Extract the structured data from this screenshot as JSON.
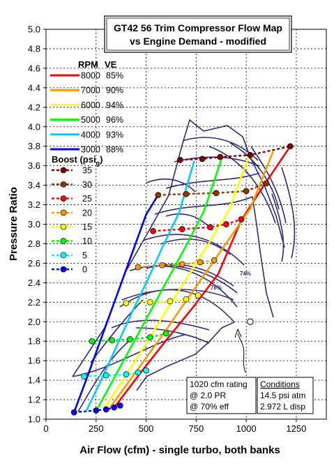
{
  "chart_data": {
    "type": "line",
    "title_lines": [
      "GT42 56 Trim Compressor Flow Map",
      "vs Engine Demand - modified"
    ],
    "xlabel": "Air Flow (cfm) - single turbo, both banks",
    "ylabel": "Pressure Ratio",
    "xlim": [
      0,
      1400
    ],
    "ylim": [
      1.0,
      5.0
    ],
    "x_ticks": [
      "0",
      "250",
      "500",
      "750",
      "1000",
      "1250"
    ],
    "y_ticks": [
      "1.0",
      "1.2",
      "1.4",
      "1.6",
      "1.8",
      "2.0",
      "2.2",
      "2.4",
      "2.6",
      "2.8",
      "3.0",
      "3.2",
      "3.4",
      "3.6",
      "3.8",
      "4.0",
      "4.2",
      "4.4",
      "4.6",
      "4.8",
      "5.0"
    ],
    "grid": "dashed vertical and horizontal",
    "boost_levels": [
      "0",
      "5",
      "10",
      "15",
      "20",
      "25",
      "30",
      "35"
    ],
    "rpm_series": [
      {
        "name": "8000",
        "ve": "85%",
        "color": "#ff0000",
        "x": [
          345,
          470,
          600,
          735,
          860,
          975,
          1095,
          1220
        ],
        "y": [
          1.13,
          1.47,
          1.81,
          2.15,
          2.49,
          3.04,
          3.42,
          3.8
        ]
      },
      {
        "name": "7000",
        "ve": "90%",
        "color": "#ff9900",
        "x": [
          320,
          440,
          560,
          675,
          790,
          905,
          1020,
          1135
        ],
        "y": [
          1.12,
          1.46,
          1.8,
          2.14,
          2.48,
          2.82,
          3.16,
          3.75
        ]
      },
      {
        "name": "6000",
        "ve": "94%",
        "color": "#ffff00",
        "x": [
          290,
          400,
          505,
          605,
          710,
          815,
          915,
          1015
        ],
        "y": [
          1.11,
          1.45,
          1.79,
          2.13,
          2.47,
          2.81,
          3.15,
          3.71
        ]
      },
      {
        "name": "5000",
        "ve": "96%",
        "color": "#00ff00",
        "x": [
          255,
          345,
          435,
          525,
          615,
          705,
          790,
          875
        ],
        "y": [
          1.1,
          1.44,
          1.78,
          2.12,
          2.46,
          2.8,
          3.14,
          3.66
        ]
      },
      {
        "name": "4000",
        "ve": "93%",
        "color": "#00ccff",
        "x": [
          200,
          280,
          355,
          430,
          510,
          585,
          665,
          740
        ],
        "y": [
          1.08,
          1.42,
          1.76,
          2.1,
          2.44,
          2.78,
          3.12,
          3.65
        ]
      },
      {
        "name": "3000",
        "ve": "88%",
        "color": "#0000ff",
        "x": [
          140,
          200,
          260,
          320,
          380,
          440,
          500,
          560
        ],
        "y": [
          1.07,
          1.4,
          1.74,
          2.08,
          2.42,
          2.76,
          3.1,
          3.3
        ]
      }
    ],
    "boost_series": [
      {
        "name": "35",
        "color": "#800000",
        "x": [
          670,
          780,
          870,
          1020,
          1220
        ],
        "y": [
          3.66,
          3.67,
          3.69,
          3.71,
          3.8
        ]
      },
      {
        "name": "30",
        "color": "#993300",
        "x": [
          560,
          700,
          850,
          1000,
          1100
        ],
        "y": [
          3.3,
          3.31,
          3.32,
          3.34,
          3.42
        ]
      },
      {
        "name": "25",
        "color": "#ff0000",
        "x": [
          535,
          680,
          820,
          900,
          975
        ],
        "y": [
          2.93,
          2.95,
          2.97,
          3.0,
          3.05
        ]
      },
      {
        "name": "20",
        "color": "#ff9900",
        "x": [
          460,
          580,
          680,
          770,
          840
        ],
        "y": [
          2.56,
          2.58,
          2.59,
          2.61,
          2.63
        ]
      },
      {
        "name": "15",
        "color": "#ffff00",
        "x": [
          400,
          520,
          620,
          700,
          760
        ],
        "y": [
          2.19,
          2.2,
          2.21,
          2.23,
          2.27
        ]
      },
      {
        "name": "10",
        "color": "#00ff00",
        "x": [
          230,
          330,
          420,
          520,
          600
        ],
        "y": [
          1.8,
          1.81,
          1.82,
          1.84,
          1.88
        ]
      },
      {
        "name": "5",
        "color": "#00ffff",
        "x": [
          190,
          300,
          400,
          460,
          500
        ],
        "y": [
          1.44,
          1.45,
          1.46,
          1.48,
          1.5
        ]
      },
      {
        "name": "0",
        "color": "#0000ff",
        "x": [
          140,
          250,
          300,
          340,
          370
        ],
        "y": [
          1.07,
          1.09,
          1.1,
          1.12,
          1.14
        ]
      }
    ],
    "rating_point": {
      "x": 1020,
      "y": 2.0,
      "label_lines": [
        "1020 cfm rating",
        "@ 2.0 PR",
        "@ 70% eff"
      ]
    },
    "conditions": {
      "header": "Conditions",
      "lines": [
        "14.5 psi atm",
        "2.972 L disp"
      ]
    },
    "efficiency_labels": [
      "78%",
      "74%"
    ]
  },
  "legend": {
    "rpm_header": "RPM",
    "ve_header": "VE",
    "boost_header": "Boost (psi",
    "boost_sub": "g",
    "boost_close": ")"
  }
}
